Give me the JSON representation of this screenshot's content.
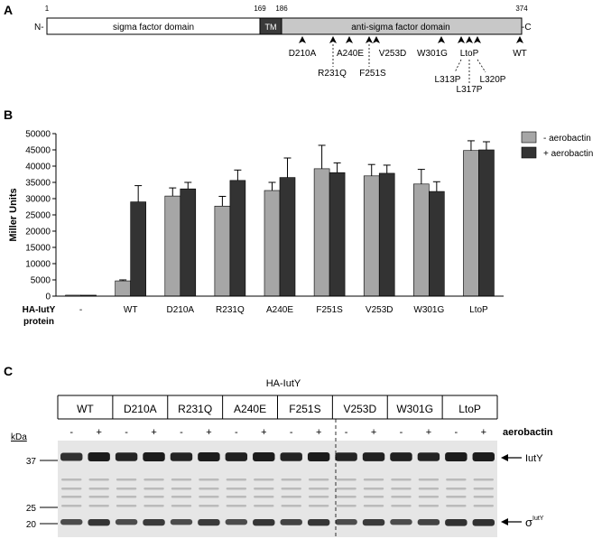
{
  "panel_a": {
    "label": "A",
    "n_term": "N-",
    "c_term": "-C",
    "pos_start": "1",
    "pos_169": "169",
    "pos_186": "186",
    "pos_end": "374",
    "sigma_domain": "sigma factor domain",
    "tm_domain": "TM",
    "anti_sigma_domain": "anti-sigma factor domain",
    "mutations_row1": [
      "D210A",
      "A240E",
      "V253D",
      "W301G",
      "LtoP",
      "WT"
    ],
    "mutations_row2": [
      "R231Q",
      "F251S"
    ],
    "ltop_members": [
      "L313P",
      "L317P",
      "L320P"
    ]
  },
  "panel_b": {
    "label": "B",
    "xlabel_line1": "HA-IutY",
    "xlabel_line2": "protein",
    "colors": {
      "minus": "#a6a6a6",
      "plus": "#333333"
    }
  },
  "chart_data": {
    "type": "bar",
    "ylabel": "Miller  Units",
    "categories": [
      "-",
      "WT",
      "D210A",
      "R231Q",
      "A240E",
      "F251S",
      "V253D",
      "W301G",
      "LtoP"
    ],
    "ylim": [
      0,
      50000
    ],
    "yticks": [
      0,
      5000,
      10000,
      15000,
      20000,
      25000,
      30000,
      35000,
      40000,
      45000,
      50000
    ],
    "legend_position": "top-right",
    "series": [
      {
        "name": "- aerobactin",
        "values": [
          300,
          4700,
          30800,
          27700,
          32500,
          39200,
          37000,
          34500,
          44800
        ],
        "errors": [
          0,
          300,
          2500,
          3000,
          2500,
          7200,
          3500,
          4500,
          3000
        ]
      },
      {
        "name": "+ aerobactin",
        "values": [
          300,
          29000,
          33000,
          35600,
          36500,
          38000,
          37800,
          32200,
          45000
        ],
        "errors": [
          0,
          5000,
          2000,
          3200,
          6000,
          3000,
          2500,
          3000,
          2500
        ]
      }
    ]
  },
  "panel_c": {
    "label": "C",
    "header": "HA-IutY",
    "lanes": [
      "WT",
      "D210A",
      "R231Q",
      "A240E",
      "F251S",
      "V253D",
      "W301G",
      "LtoP"
    ],
    "minus_sign": "-",
    "plus_sign": "+",
    "aerobactin_label": "aerobactin",
    "kda_label": "kDa",
    "markers": [
      "37",
      "25",
      "20"
    ],
    "band_upper": "IutY",
    "band_lower_symbol": "σ",
    "band_lower_superscript": "IutY"
  }
}
